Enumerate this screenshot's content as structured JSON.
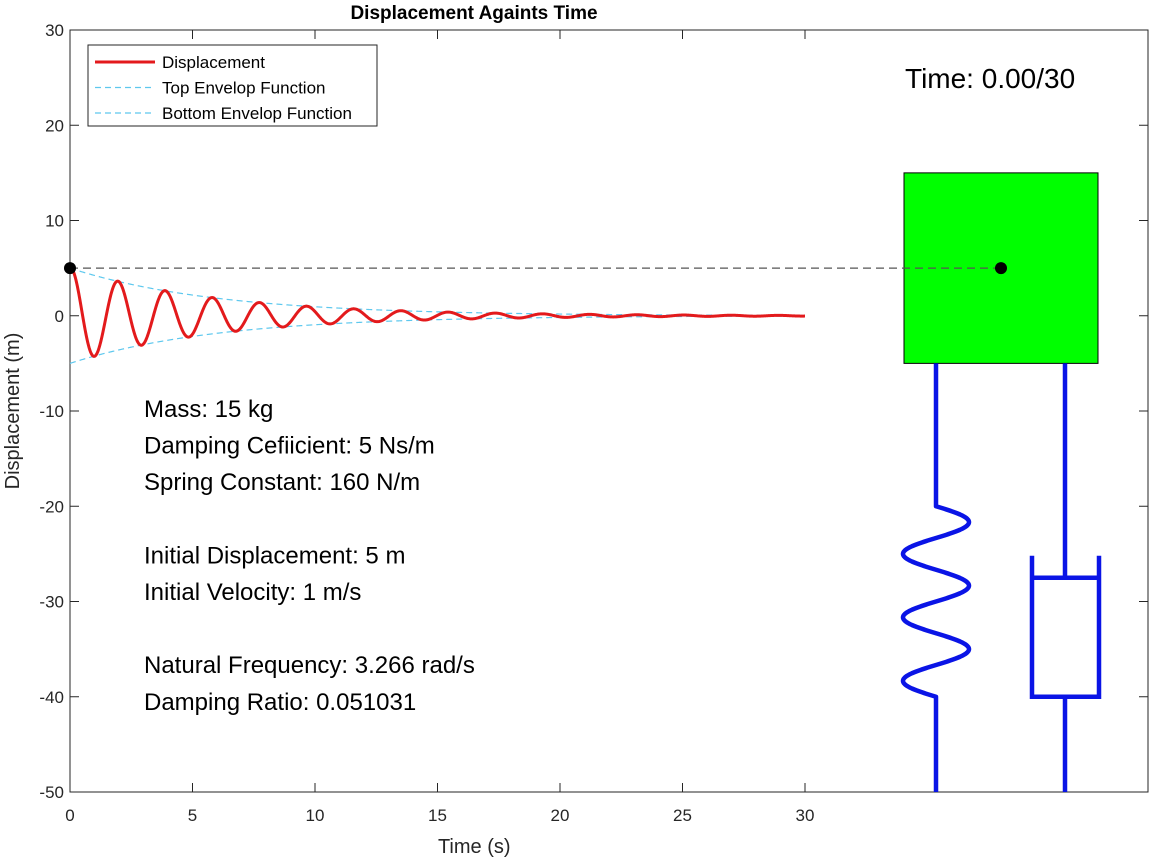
{
  "chart_data": {
    "type": "line",
    "title": "Displacement Againts Time",
    "xlabel": "Time (s)",
    "ylabel": "Displacement (m)",
    "xlim": [
      0,
      44
    ],
    "ylim": [
      -50,
      30
    ],
    "xticks": [
      0,
      5,
      10,
      15,
      20,
      25,
      30
    ],
    "yticks": [
      30,
      20,
      10,
      0,
      -10,
      -20,
      -30,
      -40,
      -50
    ],
    "grid": false,
    "legend_position": "top-left",
    "series": [
      {
        "name": "Displacement",
        "color": "#e31a1c",
        "style": "solid",
        "kind": "damped_response",
        "params": {
          "x0": 5,
          "v0": 1,
          "wn": 3.266,
          "zeta": 0.051031,
          "t_end": 30
        }
      },
      {
        "name": "Top Envelop Function",
        "color": "#5ec8ee",
        "style": "dashed",
        "kind": "top_envelope"
      },
      {
        "name": "Bottom Envelop Function",
        "color": "#5ec8ee",
        "style": "dashed",
        "kind": "bottom_envelope"
      }
    ],
    "marker_point": {
      "x": 0,
      "y": 5
    }
  },
  "time_readout": "Time: 0.00/30",
  "info_lines": [
    "Mass: 15 kg",
    "Damping Cefiicient: 5 Ns/m",
    "Spring Constant: 160 N/m",
    "",
    "Initial Displacement: 5 m",
    "Initial Velocity: 1 m/s",
    "",
    "Natural Frequency: 3.266 rad/s",
    "Damping Ratio: 0.051031"
  ],
  "mass_block": {
    "color": "#00ff00",
    "top": 15,
    "bottom": -5,
    "center": 5
  },
  "mechanism_color": "#0a14e6"
}
